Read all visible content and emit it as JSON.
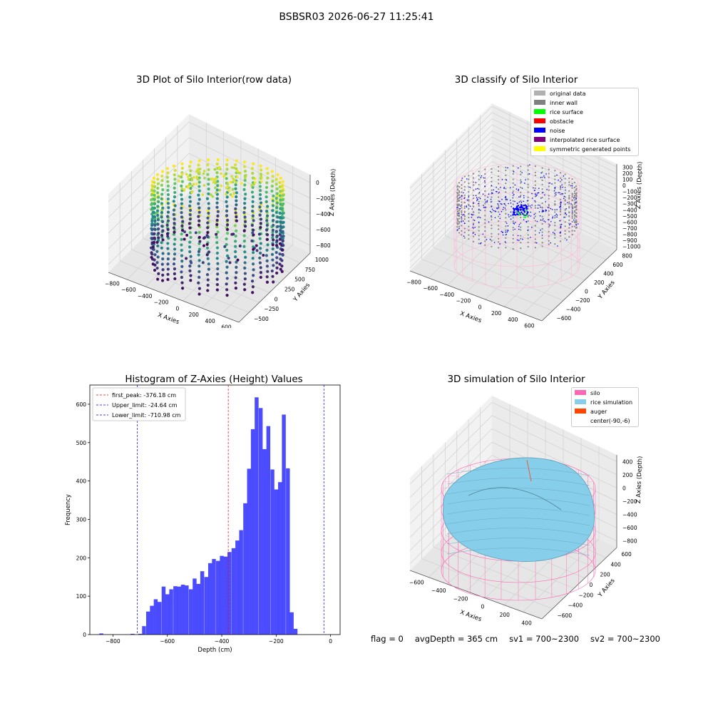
{
  "figure_title": "BSBSR03 2026-06-27 11:25:41",
  "footer": {
    "flag": "flag = 0",
    "avg_depth": "avgDepth = 365 cm",
    "sv1": "sv1 = 700~2300",
    "sv2": "sv2 = 700~2300"
  },
  "chart_data": [
    {
      "type": "scatter",
      "title": "3D Plot of Silo Interior(row data)",
      "xlabel": "X Axies",
      "ylabel": "Y Axies",
      "zlabel": "Z Axies (Depth)",
      "x_ticks": [
        -800,
        -600,
        -400,
        -200,
        0,
        200,
        400,
        600
      ],
      "y_ticks": [
        -500,
        -250,
        0,
        250,
        500,
        750,
        1000
      ],
      "z_ticks": [
        -800,
        -600,
        -400,
        -200,
        0
      ],
      "colormap": "viridis",
      "grid": true
    },
    {
      "type": "scatter",
      "title": "3D classify of Silo Interior",
      "xlabel": "X Axies",
      "ylabel": "Y Axies",
      "zlabel": "Z Axies (Depth)",
      "x_ticks": [
        -800,
        -600,
        -400,
        -200,
        0,
        200,
        400,
        600
      ],
      "y_ticks": [
        -600,
        -400,
        -200,
        0,
        200,
        400,
        600,
        800
      ],
      "z_ticks": [
        -1000,
        -900,
        -800,
        -700,
        -600,
        -500,
        -400,
        -300,
        -200,
        -100,
        0,
        100,
        200,
        300
      ],
      "legend_position": "top-right",
      "legend": [
        {
          "label": "original data",
          "color": "#b0b0b0"
        },
        {
          "label": "inner wall",
          "color": "#808080"
        },
        {
          "label": "rice surface",
          "color": "#00ff00"
        },
        {
          "label": "obstacle",
          "color": "#ff0000"
        },
        {
          "label": "noise",
          "color": "#0000ff"
        },
        {
          "label": "interpolated rice surface",
          "color": "#800080"
        },
        {
          "label": "symmetric generated points",
          "color": "#ffff00"
        }
      ],
      "grid": true
    },
    {
      "type": "bar",
      "title": "Histogram of Z-Axies (Height) Values",
      "xlabel": "Depth (cm)",
      "ylabel": "Frequency",
      "xlim": [
        -885,
        35
      ],
      "ylim": [
        0,
        650
      ],
      "x_ticks": [
        -800,
        -600,
        -400,
        -200,
        0
      ],
      "y_ticks": [
        0,
        100,
        200,
        300,
        400,
        500,
        600
      ],
      "bar_color": "#0000ff",
      "bin_width": 14.3,
      "bins": [
        [
          -850,
          3
        ],
        [
          -735,
          2
        ],
        [
          -707,
          2
        ],
        [
          -693,
          22
        ],
        [
          -678,
          60
        ],
        [
          -664,
          75
        ],
        [
          -650,
          92
        ],
        [
          -636,
          85
        ],
        [
          -621,
          125
        ],
        [
          -607,
          105
        ],
        [
          -593,
          118
        ],
        [
          -578,
          126
        ],
        [
          -564,
          125
        ],
        [
          -550,
          130
        ],
        [
          -536,
          128
        ],
        [
          -521,
          118
        ],
        [
          -507,
          146
        ],
        [
          -493,
          132
        ],
        [
          -479,
          165
        ],
        [
          -464,
          150
        ],
        [
          -450,
          186
        ],
        [
          -436,
          197
        ],
        [
          -421,
          192
        ],
        [
          -407,
          205
        ],
        [
          -393,
          203
        ],
        [
          -379,
          215
        ],
        [
          -364,
          225
        ],
        [
          -350,
          245
        ],
        [
          -336,
          272
        ],
        [
          -321,
          342
        ],
        [
          -307,
          432
        ],
        [
          -293,
          535
        ],
        [
          -279,
          618
        ],
        [
          -264,
          590
        ],
        [
          -250,
          483
        ],
        [
          -236,
          543
        ],
        [
          -221,
          430
        ],
        [
          -207,
          378
        ],
        [
          -193,
          397
        ],
        [
          -179,
          573
        ],
        [
          -164,
          433
        ],
        [
          -150,
          58
        ],
        [
          -136,
          15
        ]
      ],
      "vlines": [
        {
          "label": "first_peak: -376.18 cm",
          "x": -376.18,
          "color": "#ff0000"
        },
        {
          "label": "Upper_limit: -24.64 cm",
          "x": -24.64,
          "color": "#0000ff"
        },
        {
          "label": "Lower_limit: -710.98 cm",
          "x": -710.98,
          "color": "#0000ff"
        }
      ],
      "legend_position": "top-left"
    },
    {
      "type": "scatter",
      "title": "3D simulation of Silo Interior",
      "xlabel": "X Axies",
      "ylabel": "Y Axies",
      "zlabel": "Z Axies (Depth)",
      "x_ticks": [
        -600,
        -400,
        -200,
        0,
        200,
        400
      ],
      "y_ticks": [
        -600,
        -400,
        -200,
        0,
        200,
        400,
        600
      ],
      "z_ticks": [
        -800,
        -600,
        -400,
        -200,
        0,
        200,
        400
      ],
      "legend_position": "top-right",
      "legend": [
        {
          "label": "silo",
          "color": "#ff69b4"
        },
        {
          "label": "rice simulation",
          "color": "#87ceeb"
        },
        {
          "label": "auger",
          "color": "#ff4500"
        },
        {
          "label": "center(-90,-6)",
          "color": "#ffffff"
        }
      ],
      "grid": true
    }
  ]
}
